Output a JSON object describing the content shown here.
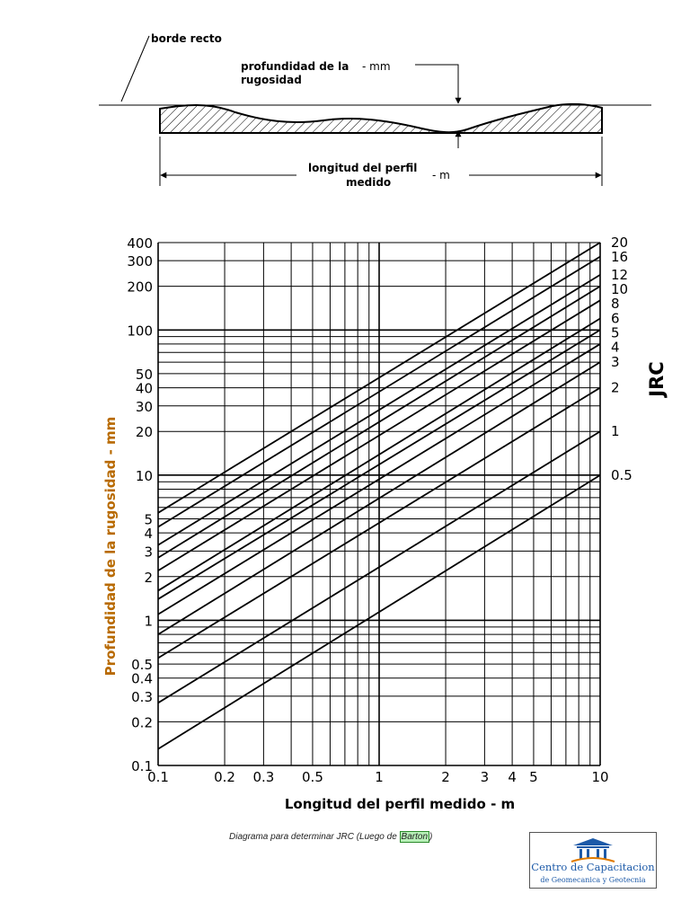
{
  "diagram": {
    "straight_edge_label": "borde recto",
    "depth_label_line1": "profundidad de la",
    "depth_label_line2": "rugosidad",
    "depth_unit": "- mm",
    "length_label_line1": "longitud del perfil",
    "length_label_line2": "medido",
    "length_unit": "- m"
  },
  "chart_data": {
    "type": "line",
    "xscale": "log",
    "yscale": "log",
    "xlim": [
      0.1,
      10
    ],
    "ylim": [
      0.1,
      400
    ],
    "xlabel": "Longitud del perfil medido  -  m",
    "ylabel": "Profundidad de la rugosidad - mm",
    "right_axis_label": "JRC",
    "x_ticks": [
      {
        "value": 0.1,
        "label": "0.1"
      },
      {
        "value": 0.2,
        "label": "0.2"
      },
      {
        "value": 0.3,
        "label": "0.3"
      },
      {
        "value": 0.5,
        "label": "0.5"
      },
      {
        "value": 1,
        "label": "1"
      },
      {
        "value": 2,
        "label": "2"
      },
      {
        "value": 3,
        "label": "3"
      },
      {
        "value": 4,
        "label": "4"
      },
      {
        "value": 5,
        "label": "5"
      },
      {
        "value": 10,
        "label": "10"
      }
    ],
    "x_grid": [
      0.1,
      0.2,
      0.3,
      0.4,
      0.5,
      0.6,
      0.7,
      0.8,
      0.9,
      1,
      2,
      3,
      4,
      5,
      6,
      7,
      8,
      9,
      10
    ],
    "y_ticks": [
      {
        "value": 0.1,
        "label": "0.1"
      },
      {
        "value": 0.2,
        "label": "0.2"
      },
      {
        "value": 0.3,
        "label": "0.3"
      },
      {
        "value": 0.4,
        "label": "0.4"
      },
      {
        "value": 0.5,
        "label": "0.5"
      },
      {
        "value": 1,
        "label": "1"
      },
      {
        "value": 2,
        "label": "2"
      },
      {
        "value": 3,
        "label": "3"
      },
      {
        "value": 4,
        "label": "4"
      },
      {
        "value": 5,
        "label": "5"
      },
      {
        "value": 10,
        "label": "10"
      },
      {
        "value": 20,
        "label": "20"
      },
      {
        "value": 30,
        "label": "30"
      },
      {
        "value": 40,
        "label": "40"
      },
      {
        "value": 50,
        "label": "50"
      },
      {
        "value": 100,
        "label": "100"
      },
      {
        "value": 200,
        "label": "200"
      },
      {
        "value": 300,
        "label": "300"
      },
      {
        "value": 400,
        "label": "400"
      }
    ],
    "y_grid": [
      0.1,
      0.2,
      0.3,
      0.4,
      0.5,
      0.6,
      0.7,
      0.8,
      0.9,
      1,
      2,
      3,
      4,
      5,
      6,
      7,
      8,
      9,
      10,
      20,
      30,
      40,
      50,
      60,
      70,
      80,
      90,
      100,
      200,
      300,
      400
    ],
    "series": [
      {
        "name": "20",
        "x": [
          0.1,
          10
        ],
        "y": [
          5.5,
          400
        ]
      },
      {
        "name": "16",
        "x": [
          0.1,
          10
        ],
        "y": [
          4.4,
          320
        ]
      },
      {
        "name": "12",
        "x": [
          0.1,
          10
        ],
        "y": [
          3.3,
          240
        ]
      },
      {
        "name": "10",
        "x": [
          0.1,
          10
        ],
        "y": [
          2.7,
          200
        ]
      },
      {
        "name": "8",
        "x": [
          0.1,
          10
        ],
        "y": [
          2.2,
          160
        ]
      },
      {
        "name": "6",
        "x": [
          0.1,
          10
        ],
        "y": [
          1.6,
          120
        ]
      },
      {
        "name": "5",
        "x": [
          0.1,
          10
        ],
        "y": [
          1.4,
          100
        ]
      },
      {
        "name": "4",
        "x": [
          0.1,
          10
        ],
        "y": [
          1.1,
          80
        ]
      },
      {
        "name": "3",
        "x": [
          0.1,
          10
        ],
        "y": [
          0.8,
          60
        ]
      },
      {
        "name": "2",
        "x": [
          0.1,
          10
        ],
        "y": [
          0.55,
          40
        ]
      },
      {
        "name": "1",
        "x": [
          0.1,
          10
        ],
        "y": [
          0.27,
          20
        ]
      },
      {
        "name": "0.5",
        "x": [
          0.1,
          10
        ],
        "y": [
          0.13,
          10
        ]
      }
    ]
  },
  "caption": {
    "prefix": "Diagrama para determinar JRC (Luego de ",
    "link": "Barton",
    "suffix": ")"
  },
  "logo": {
    "line1": "Centro de Capacitacion",
    "line2": "de Geomecanica y Geotecnia",
    "color": "#1d5aa8"
  }
}
